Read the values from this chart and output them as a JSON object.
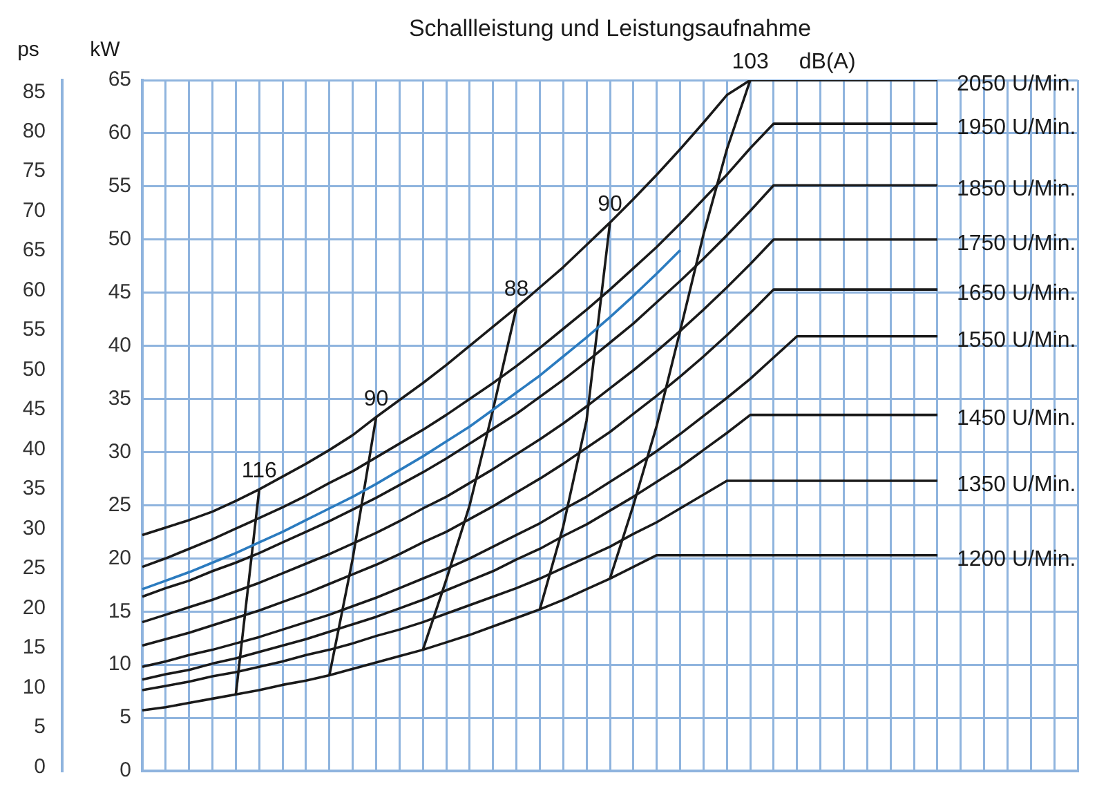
{
  "chart_data": {
    "type": "line",
    "title": "Schallleistung und Leistungsaufnahme",
    "ylabel": "kW",
    "y2label": "ps",
    "categories": [
      null,
      null,
      null,
      null,
      null,
      null,
      null,
      null,
      null,
      null,
      null,
      null,
      null,
      null,
      null,
      null,
      null,
      null,
      null,
      null,
      null,
      null,
      null,
      null,
      null,
      null,
      null,
      null,
      null,
      null,
      null,
      null,
      null,
      null,
      null,
      null,
      null,
      null,
      null,
      null,
      null
    ],
    "ylim": [
      0,
      65
    ],
    "yticks": [
      0,
      5,
      10,
      15,
      20,
      25,
      30,
      35,
      40,
      45,
      50,
      55,
      60,
      65
    ],
    "y2lim": [
      -0.5,
      86.5
    ],
    "y2ticks": [
      0,
      5,
      10,
      15,
      20,
      25,
      30,
      35,
      40,
      45,
      50,
      55,
      60,
      65,
      70,
      75,
      80,
      85
    ],
    "grid": true,
    "legend": false,
    "marker": "none",
    "line_style": "solid",
    "tick_labels": "y",
    "series": [
      {
        "name": "2050 U/Min.",
        "color": "#1a1a1a",
        "values": [
          22.2,
          22.9,
          23.6,
          24.4,
          25.4,
          26.5,
          27.7,
          28.9,
          30.2,
          31.6,
          33.3,
          34.9,
          36.5,
          38.2,
          40.0,
          41.8,
          43.6,
          45.5,
          47.4,
          49.5,
          51.6,
          53.8,
          56.1,
          58.5,
          61.0,
          63.6,
          65,
          65,
          65,
          65,
          65,
          65,
          65,
          65,
          65,
          null,
          null,
          null,
          null,
          null,
          null
        ]
      },
      {
        "name": "1950 U/Min.",
        "color": "#1a1a1a",
        "values": [
          19.2,
          20.0,
          20.9,
          21.8,
          22.8,
          23.8,
          24.8,
          25.9,
          27.1,
          28.2,
          29.5,
          30.8,
          32.1,
          33.5,
          35.0,
          36.5,
          38.1,
          39.8,
          41.6,
          43.4,
          45.3,
          47.3,
          49.3,
          51.5,
          53.8,
          56.1,
          58.6,
          60.9,
          60.9,
          60.9,
          60.9,
          60.9,
          60.9,
          60.9,
          60.9,
          null,
          null,
          null,
          null,
          null,
          null
        ]
      },
      {
        "name": "1850 U/Min.",
        "color": "#1a1a1a",
        "values": [
          16.4,
          17.2,
          17.9,
          18.8,
          19.6,
          20.5,
          21.5,
          22.5,
          23.5,
          24.6,
          25.7,
          26.9,
          28.1,
          29.4,
          30.8,
          32.2,
          33.6,
          35.2,
          36.8,
          38.5,
          40.3,
          42.1,
          44.1,
          46.1,
          48.2,
          50.4,
          52.7,
          55.1,
          55.1,
          55.1,
          55.1,
          55.1,
          55.1,
          55.1,
          55.1,
          null,
          null,
          null,
          null,
          null,
          null
        ]
      },
      {
        "name": "1750 U/Min.",
        "color": "#1a1a1a",
        "values": [
          14.0,
          14.7,
          15.4,
          16.1,
          16.9,
          17.7,
          18.6,
          19.5,
          20.4,
          21.4,
          22.4,
          23.5,
          24.7,
          25.8,
          27.1,
          28.4,
          29.8,
          31.2,
          32.7,
          34.3,
          36.0,
          37.7,
          39.5,
          41.4,
          43.4,
          45.5,
          47.7,
          50.0,
          50.0,
          50.0,
          50.0,
          50.0,
          50.0,
          50.0,
          50.0,
          null,
          null,
          null,
          null,
          null,
          null
        ]
      },
      {
        "name": "1650 U/Min.",
        "color": "#1a1a1a",
        "values": [
          11.8,
          12.4,
          13.0,
          13.7,
          14.4,
          15.1,
          15.9,
          16.7,
          17.6,
          18.5,
          19.4,
          20.4,
          21.5,
          22.5,
          23.7,
          24.9,
          26.2,
          27.5,
          28.9,
          30.4,
          31.9,
          33.6,
          35.3,
          37.1,
          39.0,
          41.0,
          43.1,
          45.3,
          45.3,
          45.3,
          45.3,
          45.3,
          45.3,
          45.3,
          45.3,
          null,
          null,
          null,
          null,
          null,
          null
        ]
      },
      {
        "name": "1550 U/Min.",
        "color": "#1a1a1a",
        "values": [
          9.8,
          10.3,
          10.9,
          11.4,
          12.0,
          12.6,
          13.3,
          14.0,
          14.7,
          15.5,
          16.3,
          17.2,
          18.1,
          19.0,
          20.0,
          21.1,
          22.2,
          23.3,
          24.6,
          25.8,
          27.2,
          28.6,
          30.1,
          31.7,
          33.4,
          35.1,
          36.9,
          38.9,
          40.9,
          40.9,
          40.9,
          40.9,
          40.9,
          40.9,
          40.9,
          null,
          null,
          null,
          null,
          null,
          null
        ]
      },
      {
        "name": "1450 U/Min.",
        "color": "#1a1a1a",
        "values": [
          8.6,
          9.1,
          9.5,
          10.1,
          10.6,
          11.2,
          11.8,
          12.4,
          13.1,
          13.8,
          14.5,
          15.3,
          16.1,
          17.0,
          17.9,
          18.8,
          19.9,
          20.9,
          22.1,
          23.2,
          24.5,
          25.8,
          27.2,
          28.6,
          30.2,
          31.8,
          33.5,
          33.5,
          33.5,
          33.5,
          33.5,
          33.5,
          33.5,
          33.5,
          33.5,
          null,
          null,
          null,
          null,
          null,
          null
        ]
      },
      {
        "name": "1350 U/Min.",
        "color": "#1a1a1a",
        "values": [
          7.6,
          8.0,
          8.4,
          8.9,
          9.3,
          9.8,
          10.3,
          10.9,
          11.4,
          12.0,
          12.7,
          13.3,
          14.0,
          14.8,
          15.6,
          16.4,
          17.2,
          18.1,
          19.1,
          20.1,
          21.1,
          22.3,
          23.4,
          24.7,
          26.0,
          27.3,
          27.3,
          27.3,
          27.3,
          27.3,
          27.3,
          27.3,
          27.3,
          27.3,
          27.3,
          null,
          null,
          null,
          null,
          null,
          null
        ]
      },
      {
        "name": "1200 U/Min.",
        "color": "#1a1a1a",
        "values": [
          5.7,
          6.0,
          6.4,
          6.8,
          7.2,
          7.6,
          8.1,
          8.5,
          9.0,
          9.6,
          10.2,
          10.8,
          11.4,
          12.1,
          12.8,
          13.6,
          14.4,
          15.2,
          16.1,
          17.1,
          18.1,
          19.2,
          20.3,
          20.3,
          20.3,
          20.3,
          20.3,
          20.3,
          20.3,
          20.3,
          20.3,
          20.3,
          20.3,
          20.3,
          20.3,
          null,
          null,
          null,
          null,
          null,
          null
        ]
      },
      {
        "color": "#2b7bbf",
        "values": [
          17.1,
          17.9,
          18.7,
          19.6,
          20.5,
          21.5,
          22.5,
          23.6,
          24.7,
          25.8,
          27.0,
          28.3,
          29.6,
          31.0,
          32.4,
          34.0,
          35.6,
          37.2,
          39.0,
          40.8,
          42.7,
          44.7,
          46.8,
          49.0,
          null,
          null,
          null,
          null,
          null,
          null,
          null,
          null,
          null,
          null,
          null,
          null,
          null,
          null,
          null,
          null,
          null
        ]
      },
      {
        "name": "116",
        "color": "#1a1a1a",
        "values": [
          null,
          null,
          null,
          null,
          7.2,
          26.5,
          null,
          null,
          null,
          null,
          null,
          null,
          null,
          null,
          null,
          null,
          null,
          null,
          null,
          null,
          null,
          null,
          null,
          null,
          null,
          null,
          null,
          null,
          null,
          null,
          null,
          null,
          null,
          null,
          null,
          null,
          null,
          null,
          null,
          null,
          null
        ]
      },
      {
        "name": "90",
        "color": "#1a1a1a",
        "values": [
          null,
          null,
          null,
          null,
          null,
          null,
          null,
          null,
          9.0,
          20.0,
          33.3,
          null,
          null,
          null,
          null,
          null,
          null,
          null,
          null,
          null,
          null,
          null,
          null,
          null,
          null,
          null,
          null,
          null,
          null,
          null,
          null,
          null,
          null,
          null,
          null,
          null,
          null,
          null,
          null,
          null,
          null
        ]
      },
      {
        "name": "88",
        "color": "#1a1a1a",
        "values": [
          null,
          null,
          null,
          null,
          null,
          null,
          null,
          null,
          null,
          null,
          null,
          null,
          11.4,
          18.0,
          25.0,
          34.0,
          43.6,
          null,
          null,
          null,
          null,
          null,
          null,
          null,
          null,
          null,
          null,
          null,
          null,
          null,
          null,
          null,
          null,
          null,
          null,
          null,
          null,
          null,
          null,
          null,
          null
        ]
      },
      {
        "name": "90",
        "color": "#1a1a1a",
        "values": [
          null,
          null,
          null,
          null,
          null,
          null,
          null,
          null,
          null,
          null,
          null,
          null,
          null,
          null,
          null,
          null,
          null,
          15.2,
          23.0,
          33.0,
          51.6,
          null,
          null,
          null,
          null,
          null,
          null,
          null,
          null,
          null,
          null,
          null,
          null,
          null,
          null,
          null,
          null,
          null,
          null,
          null,
          null
        ]
      },
      {
        "name": "103",
        "color": "#1a1a1a",
        "values": [
          null,
          null,
          null,
          null,
          null,
          null,
          null,
          null,
          null,
          null,
          null,
          null,
          null,
          null,
          null,
          null,
          null,
          null,
          null,
          null,
          18.1,
          25.0,
          32.5,
          41.4,
          50.5,
          58.5,
          65,
          null,
          null,
          null,
          null,
          null,
          null,
          null,
          null,
          null,
          null,
          null,
          null,
          null,
          null
        ]
      }
    ],
    "annotations": [
      "dB(A)"
    ]
  }
}
